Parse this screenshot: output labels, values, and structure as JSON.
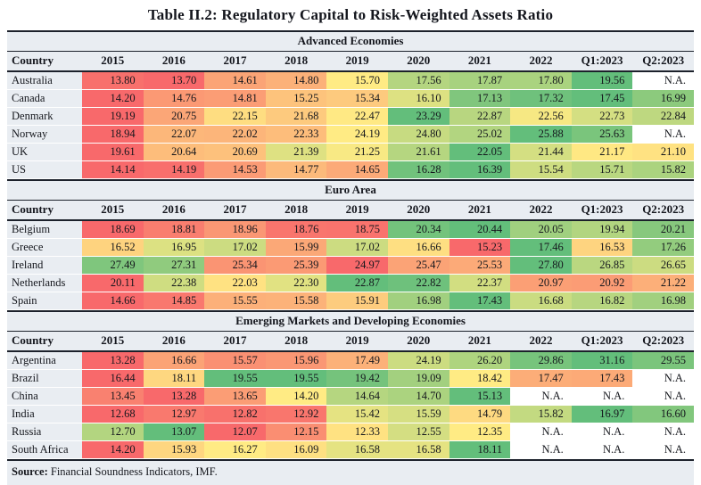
{
  "title": "Table II.2: Regulatory Capital to Risk-Weighted Assets Ratio",
  "columns": [
    "Country",
    "2015",
    "2016",
    "2017",
    "2018",
    "2019",
    "2020",
    "2021",
    "2022",
    "Q1:2023",
    "Q2:2023"
  ],
  "na_label": "N.A.",
  "heatmap": {
    "min_color": "#F8696B",
    "mid_color": "#FFEB84",
    "max_color": "#63BE7B",
    "na_color": "#FFFFFF"
  },
  "sections": [
    {
      "name": "Advanced Economies",
      "rows": [
        {
          "country": "Australia",
          "values": [
            "13.80",
            "13.70",
            "14.61",
            "14.80",
            "15.70",
            "17.56",
            "17.87",
            "17.80",
            "19.56",
            "N.A."
          ]
        },
        {
          "country": "Canada",
          "values": [
            "14.20",
            "14.76",
            "14.81",
            "15.25",
            "15.34",
            "16.10",
            "17.13",
            "17.32",
            "17.45",
            "16.99"
          ]
        },
        {
          "country": "Denmark",
          "values": [
            "19.19",
            "20.75",
            "22.15",
            "21.68",
            "22.47",
            "23.29",
            "22.87",
            "22.56",
            "22.73",
            "22.84"
          ]
        },
        {
          "country": "Norway",
          "values": [
            "18.94",
            "22.07",
            "22.02",
            "22.33",
            "24.19",
            "24.80",
            "25.02",
            "25.88",
            "25.63",
            "N.A."
          ]
        },
        {
          "country": "UK",
          "values": [
            "19.61",
            "20.64",
            "20.69",
            "21.39",
            "21.25",
            "21.61",
            "22.05",
            "21.44",
            "21.17",
            "21.10"
          ]
        },
        {
          "country": "US",
          "values": [
            "14.14",
            "14.19",
            "14.53",
            "14.77",
            "14.65",
            "16.28",
            "16.39",
            "15.54",
            "15.71",
            "15.82"
          ]
        }
      ]
    },
    {
      "name": "Euro Area",
      "rows": [
        {
          "country": "Belgium",
          "values": [
            "18.69",
            "18.81",
            "18.96",
            "18.76",
            "18.75",
            "20.34",
            "20.44",
            "20.05",
            "19.94",
            "20.21"
          ]
        },
        {
          "country": "Greece",
          "values": [
            "16.52",
            "16.95",
            "17.02",
            "15.99",
            "17.02",
            "16.66",
            "15.23",
            "17.46",
            "16.53",
            "17.26"
          ]
        },
        {
          "country": "Ireland",
          "values": [
            "27.49",
            "27.31",
            "25.34",
            "25.39",
            "24.97",
            "25.47",
            "25.53",
            "27.80",
            "26.85",
            "26.65"
          ]
        },
        {
          "country": "Netherlands",
          "values": [
            "20.11",
            "22.38",
            "22.03",
            "22.30",
            "22.87",
            "22.82",
            "22.37",
            "20.97",
            "20.92",
            "21.22"
          ]
        },
        {
          "country": "Spain",
          "values": [
            "14.66",
            "14.85",
            "15.55",
            "15.58",
            "15.91",
            "16.98",
            "17.43",
            "16.68",
            "16.82",
            "16.98"
          ]
        }
      ]
    },
    {
      "name": "Emerging Markets and Developing Economies",
      "rows": [
        {
          "country": "Argentina",
          "values": [
            "13.28",
            "16.66",
            "15.57",
            "15.96",
            "17.49",
            "24.19",
            "26.20",
            "29.86",
            "31.16",
            "29.55"
          ]
        },
        {
          "country": "Brazil",
          "values": [
            "16.44",
            "18.11",
            "19.55",
            "19.55",
            "19.42",
            "19.09",
            "18.42",
            "17.47",
            "17.43",
            "N.A."
          ]
        },
        {
          "country": "China",
          "values": [
            "13.45",
            "13.28",
            "13.65",
            "14.20",
            "14.64",
            "14.70",
            "15.13",
            "N.A.",
            "N.A.",
            "N.A."
          ]
        },
        {
          "country": "India",
          "values": [
            "12.68",
            "12.97",
            "12.82",
            "12.92",
            "15.42",
            "15.59",
            "14.79",
            "15.82",
            "16.97",
            "16.60"
          ]
        },
        {
          "country": "Russia",
          "values": [
            "12.70",
            "13.07",
            "12.07",
            "12.15",
            "12.33",
            "12.55",
            "12.35",
            "N.A.",
            "N.A.",
            "N.A."
          ]
        },
        {
          "country": "South Africa",
          "values": [
            "14.20",
            "15.93",
            "16.27",
            "16.09",
            "16.58",
            "16.58",
            "18.11",
            "N.A.",
            "N.A.",
            "N.A."
          ]
        }
      ]
    }
  ],
  "source": {
    "label": "Source:",
    "text": " Financial Soundness Indicators, IMF."
  }
}
